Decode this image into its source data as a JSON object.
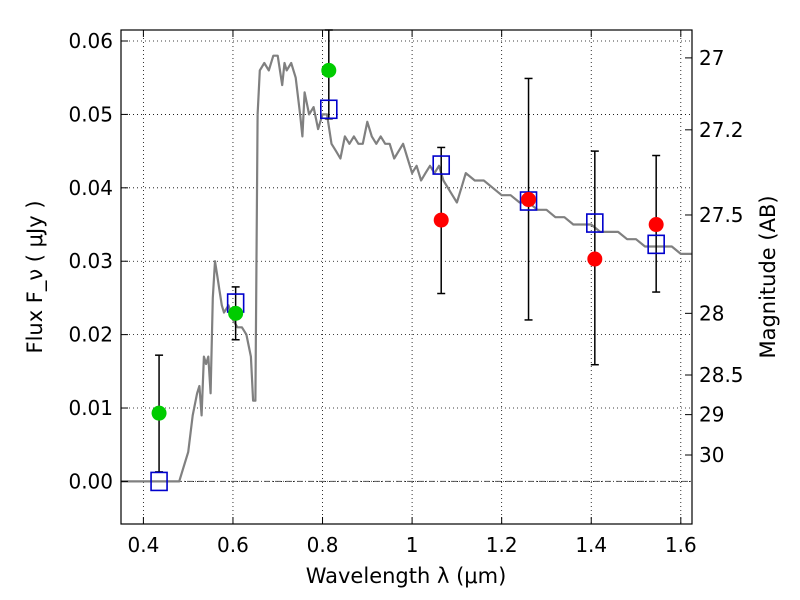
{
  "chart_data": {
    "type": "scatter",
    "xlabel": "Wavelength  λ (μm)",
    "ylabel": "Flux  F_ν  ( μJy )",
    "y2label": "Magnitude (AB)",
    "xlim": [
      0.35,
      1.625
    ],
    "ylim": [
      -0.0058,
      0.0615
    ],
    "grid": true,
    "x_ticks": [
      0.4,
      0.6,
      0.8,
      1.0,
      1.2,
      1.4,
      1.6
    ],
    "x_tick_labels": [
      "0.4",
      "0.6",
      "0.8",
      "1",
      "1.2",
      "1.4",
      "1.6"
    ],
    "y_ticks": [
      0.0,
      0.01,
      0.02,
      0.03,
      0.04,
      0.05,
      0.06
    ],
    "y_tick_labels": [
      "0.00",
      "0.01",
      "0.02",
      "0.03",
      "0.04",
      "0.05",
      "0.06"
    ],
    "y2_ticks": [
      {
        "label": "27",
        "flux": 0.0577
      },
      {
        "label": "27.2",
        "flux": 0.0479
      },
      {
        "label": "27.5",
        "flux": 0.0363
      },
      {
        "label": "28",
        "flux": 0.0229
      },
      {
        "label": "28.5",
        "flux": 0.0145
      },
      {
        "label": "29",
        "flux": 0.0091
      },
      {
        "label": "30",
        "flux": 0.0036
      }
    ],
    "model_spectrum": {
      "color": "#808080",
      "x": [
        0.35,
        0.48,
        0.49,
        0.5,
        0.51,
        0.52,
        0.525,
        0.53,
        0.535,
        0.54,
        0.545,
        0.55,
        0.555,
        0.56,
        0.565,
        0.57,
        0.575,
        0.58,
        0.59,
        0.6,
        0.61,
        0.62,
        0.63,
        0.64,
        0.645,
        0.65,
        0.655,
        0.66,
        0.67,
        0.68,
        0.69,
        0.7,
        0.71,
        0.715,
        0.72,
        0.73,
        0.74,
        0.75,
        0.755,
        0.76,
        0.77,
        0.78,
        0.79,
        0.8,
        0.81,
        0.82,
        0.83,
        0.84,
        0.85,
        0.86,
        0.87,
        0.88,
        0.89,
        0.9,
        0.91,
        0.92,
        0.93,
        0.94,
        0.95,
        0.96,
        0.97,
        0.98,
        0.99,
        1.0,
        1.01,
        1.02,
        1.03,
        1.04,
        1.05,
        1.06,
        1.07,
        1.08,
        1.09,
        1.1,
        1.11,
        1.12,
        1.14,
        1.16,
        1.18,
        1.2,
        1.22,
        1.24,
        1.26,
        1.28,
        1.3,
        1.32,
        1.34,
        1.36,
        1.38,
        1.4,
        1.42,
        1.44,
        1.46,
        1.48,
        1.5,
        1.52,
        1.54,
        1.56,
        1.58,
        1.6,
        1.625
      ],
      "y": [
        0.0,
        0.0,
        0.002,
        0.004,
        0.009,
        0.012,
        0.013,
        0.009,
        0.017,
        0.016,
        0.017,
        0.012,
        0.025,
        0.03,
        0.028,
        0.026,
        0.024,
        0.023,
        0.024,
        0.022,
        0.021,
        0.021,
        0.02,
        0.017,
        0.011,
        0.011,
        0.05,
        0.056,
        0.057,
        0.056,
        0.058,
        0.058,
        0.054,
        0.057,
        0.056,
        0.057,
        0.055,
        0.05,
        0.047,
        0.053,
        0.05,
        0.051,
        0.048,
        0.05,
        0.05,
        0.046,
        0.045,
        0.044,
        0.047,
        0.046,
        0.047,
        0.046,
        0.046,
        0.049,
        0.047,
        0.046,
        0.047,
        0.046,
        0.046,
        0.044,
        0.045,
        0.046,
        0.044,
        0.042,
        0.043,
        0.041,
        0.042,
        0.043,
        0.042,
        0.043,
        0.041,
        0.04,
        0.039,
        0.038,
        0.04,
        0.042,
        0.041,
        0.041,
        0.04,
        0.039,
        0.039,
        0.038,
        0.038,
        0.037,
        0.037,
        0.036,
        0.036,
        0.035,
        0.035,
        0.035,
        0.034,
        0.034,
        0.034,
        0.033,
        0.033,
        0.032,
        0.032,
        0.032,
        0.032,
        0.031,
        0.031
      ]
    },
    "series": [
      {
        "marker": "square-open",
        "color": "#0000cc",
        "x": [
          0.435,
          0.606,
          0.814,
          1.065,
          1.26,
          1.408,
          1.545
        ],
        "y": [
          0.0,
          0.0243,
          0.0507,
          0.0431,
          0.0382,
          0.0352,
          0.0323
        ]
      },
      {
        "marker": "circle",
        "color": "#00cc00",
        "x": [
          0.435,
          0.606,
          0.814
        ],
        "y": [
          0.0093,
          0.0229,
          0.056
        ]
      },
      {
        "marker": "circle",
        "color": "#ff0000",
        "x": [
          1.065,
          1.26,
          1.408,
          1.545
        ],
        "y": [
          0.0356,
          0.0384,
          0.0303,
          0.035
        ]
      }
    ],
    "error_bars": [
      {
        "x": 0.435,
        "low": 0.0013,
        "high": 0.0172
      },
      {
        "x": 0.606,
        "low": 0.0193,
        "high": 0.0265
      },
      {
        "x": 0.814,
        "low": 0.0494,
        "high": 0.0615
      },
      {
        "x": 1.065,
        "low": 0.0256,
        "high": 0.0455
      },
      {
        "x": 1.26,
        "low": 0.022,
        "high": 0.0549
      },
      {
        "x": 1.408,
        "low": 0.0159,
        "high": 0.045
      },
      {
        "x": 1.545,
        "low": 0.0258,
        "high": 0.0444
      }
    ]
  }
}
